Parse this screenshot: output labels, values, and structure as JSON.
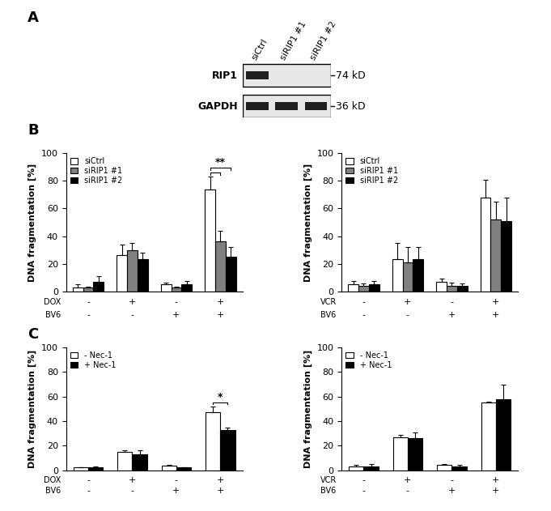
{
  "panel_labels": [
    "A",
    "B",
    "C"
  ],
  "western_blot": {
    "lanes": [
      "siCtrl",
      "siRIP1 #1",
      "siRIP1 #2"
    ],
    "rows": [
      {
        "name": "RIP1",
        "size": "74 kD",
        "bands": [
          true,
          false,
          false
        ]
      },
      {
        "name": "GAPDH",
        "size": "36 kD",
        "bands": [
          true,
          true,
          true
        ]
      }
    ]
  },
  "chart_data": [
    {
      "type": "bar",
      "panel": "B",
      "ylabel": "DNA fragmentation [%]",
      "categories": [
        null,
        null,
        null,
        null
      ],
      "treatments": [
        {
          "name": "DOX",
          "values": [
            "-",
            "+",
            "-",
            "+"
          ]
        },
        {
          "name": "BV6",
          "values": [
            "-",
            "-",
            "+",
            "+"
          ]
        }
      ],
      "ylim": [
        0,
        100
      ],
      "yticks": [
        0,
        20,
        40,
        60,
        80,
        100
      ],
      "legend": "upper left",
      "series": [
        {
          "name": "siCtrl",
          "color": "#ffffff",
          "values": [
            3,
            26,
            5,
            74
          ],
          "errors": [
            2,
            8,
            1.5,
            9
          ]
        },
        {
          "name": "siRIP1 #1",
          "color": "#808080",
          "values": [
            2.5,
            30,
            3,
            36
          ],
          "errors": [
            1,
            5,
            0.5,
            8
          ]
        },
        {
          "name": "siRIP1 #2",
          "color": "#000000",
          "values": [
            7,
            23,
            5,
            25
          ],
          "errors": [
            4,
            5,
            2.5,
            7
          ]
        }
      ],
      "annotations": [
        {
          "text": "**",
          "category": 3,
          "from": "siCtrl",
          "to": [
            "siRIP1 #1",
            "siRIP1 #2"
          ]
        }
      ]
    },
    {
      "type": "bar",
      "panel": "B",
      "ylabel": "DNA fragmentation [%]",
      "categories": [
        null,
        null,
        null,
        null
      ],
      "treatments": [
        {
          "name": "VCR",
          "values": [
            "-",
            "+",
            "-",
            "+"
          ]
        },
        {
          "name": "BV6",
          "values": [
            "-",
            "-",
            "+",
            "+"
          ]
        }
      ],
      "ylim": [
        0,
        100
      ],
      "yticks": [
        0,
        20,
        40,
        60,
        80,
        100
      ],
      "legend": "upper left",
      "series": [
        {
          "name": "siCtrl",
          "color": "#ffffff",
          "values": [
            5,
            23,
            7,
            68
          ],
          "errors": [
            2.5,
            12,
            2,
            13
          ]
        },
        {
          "name": "siRIP1 #1",
          "color": "#808080",
          "values": [
            4,
            21,
            4,
            52
          ],
          "errors": [
            1.5,
            11,
            2,
            13
          ]
        },
        {
          "name": "siRIP1 #2",
          "color": "#000000",
          "values": [
            5,
            23,
            4,
            51
          ],
          "errors": [
            2.5,
            9,
            1.5,
            17
          ]
        }
      ]
    },
    {
      "type": "bar",
      "panel": "C",
      "ylabel": "DNA fragmentation [%]",
      "categories": [
        null,
        null,
        null,
        null
      ],
      "treatments": [
        {
          "name": "DOX",
          "values": [
            "-",
            "+",
            "-",
            "+"
          ]
        },
        {
          "name": "BV6",
          "values": [
            "-",
            "-",
            "+",
            "+"
          ]
        }
      ],
      "ylim": [
        0,
        100
      ],
      "yticks": [
        0,
        20,
        40,
        60,
        80,
        100
      ],
      "legend": "upper left",
      "series": [
        {
          "name": "- Nec-1",
          "color": "#ffffff",
          "values": [
            2,
            15,
            3.5,
            47
          ],
          "errors": [
            0.5,
            1,
            0.5,
            5
          ]
        },
        {
          "name": "+ Nec-1",
          "color": "#000000",
          "values": [
            2.5,
            13,
            2,
            33
          ],
          "errors": [
            0.5,
            3,
            0.5,
            2
          ]
        }
      ],
      "annotations": [
        {
          "text": "*",
          "category": 3,
          "from": "- Nec-1",
          "to": [
            "+ Nec-1"
          ]
        }
      ]
    },
    {
      "type": "bar",
      "panel": "C",
      "ylabel": "DNA fragmentation [%]",
      "categories": [
        null,
        null,
        null,
        null
      ],
      "treatments": [
        {
          "name": "VCR",
          "values": [
            "-",
            "+",
            "-",
            "+"
          ]
        },
        {
          "name": "BV6",
          "values": [
            "-",
            "-",
            "+",
            "+"
          ]
        }
      ],
      "ylim": [
        0,
        100
      ],
      "yticks": [
        0,
        20,
        40,
        60,
        80,
        100
      ],
      "legend": "upper left",
      "series": [
        {
          "name": "- Nec-1",
          "color": "#ffffff",
          "values": [
            3,
            27,
            4,
            55
          ],
          "errors": [
            1.5,
            1.5,
            1,
            1
          ]
        },
        {
          "name": "+ Nec-1",
          "color": "#000000",
          "values": [
            3,
            26,
            3,
            58
          ],
          "errors": [
            2,
            5,
            1,
            12
          ]
        }
      ]
    }
  ]
}
